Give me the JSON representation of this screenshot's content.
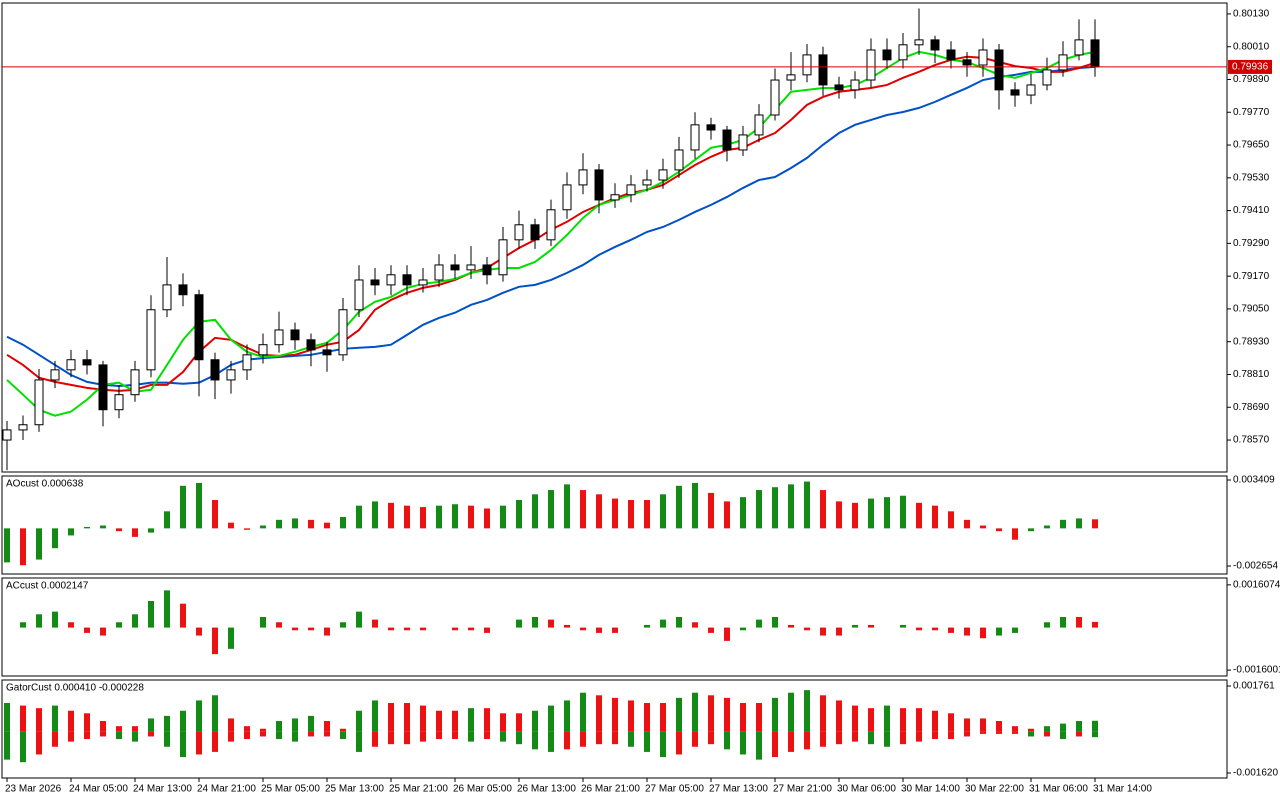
{
  "chart_data": [
    {
      "type": "candlestick",
      "categories": [
        "23 Mar 2026",
        null,
        null,
        null,
        "24 Mar 05:00",
        null,
        null,
        null,
        "24 Mar 13:00",
        null,
        null,
        null,
        "24 Mar 21:00",
        null,
        null,
        null,
        "25 Mar 05:00",
        null,
        null,
        null,
        "25 Mar 13:00",
        null,
        null,
        null,
        "25 Mar 21:00",
        null,
        null,
        null,
        "26 Mar 05:00",
        null,
        null,
        null,
        "26 Mar 13:00",
        null,
        null,
        null,
        "26 Mar 21:00",
        null,
        null,
        null,
        "27 Mar 05:00",
        null,
        null,
        null,
        "27 Mar 13:00",
        null,
        null,
        null,
        "27 Mar 21:00",
        null,
        null,
        null,
        "30 Mar 06:00",
        null,
        null,
        null,
        "30 Mar 14:00",
        null,
        null,
        null,
        "30 Mar 22:00",
        null,
        null,
        null,
        "31 Mar 06:00",
        null,
        null,
        null,
        "31 Mar 14:00"
      ],
      "open": [
        0.7857,
        0.78607,
        0.78626,
        0.7879,
        0.78827,
        0.78864,
        0.78845,
        0.78681,
        0.78736,
        0.78827,
        0.79047,
        0.79138,
        0.79102,
        0.78864,
        0.7879,
        0.78827,
        0.78882,
        0.78919,
        0.78973,
        0.78937,
        0.789,
        0.78882,
        0.79047,
        0.79156,
        0.79138,
        0.79175,
        0.79138,
        0.79156,
        0.79211,
        0.79193,
        0.79211,
        0.79175,
        0.79303,
        0.79358,
        0.79303,
        0.79413,
        0.79504,
        0.79559,
        0.79449,
        0.79468,
        0.79504,
        0.79522,
        0.79559,
        0.79632,
        0.79724,
        0.79705,
        0.79632,
        0.79687,
        0.7976,
        0.79888,
        0.79907,
        0.7998,
        0.7987,
        0.79852,
        0.79888,
        0.79998,
        0.79962,
        0.80017,
        0.80035,
        0.79998,
        0.79962,
        0.79943,
        0.79998,
        0.79852,
        0.79833,
        0.7987,
        0.79925,
        0.7998,
        0.80035
      ],
      "high": [
        0.7864,
        0.7866,
        0.7883,
        0.7886,
        0.789,
        0.789,
        0.7886,
        0.7877,
        0.7886,
        0.791,
        0.7924,
        0.7918,
        0.7912,
        0.7889,
        0.7886,
        0.7892,
        0.7896,
        0.7904,
        0.79,
        0.7896,
        0.7893,
        0.7909,
        0.7921,
        0.792,
        0.7921,
        0.7921,
        0.792,
        0.7925,
        0.7925,
        0.7928,
        0.7924,
        0.7935,
        0.7941,
        0.7938,
        0.7945,
        0.7955,
        0.7962,
        0.7958,
        0.7951,
        0.7954,
        0.7956,
        0.796,
        0.7968,
        0.7977,
        0.7975,
        0.7972,
        0.7972,
        0.798,
        0.7993,
        0.7999,
        0.8002,
        0.8001,
        0.799,
        0.7992,
        0.8004,
        0.8004,
        0.8006,
        0.8015,
        0.8005,
        0.8003,
        0.7999,
        0.8004,
        0.8002,
        0.7988,
        0.7991,
        0.7997,
        0.8003,
        0.8011,
        0.8011
      ],
      "low": [
        0.7846,
        0.7857,
        0.786,
        0.7876,
        0.788,
        0.7881,
        0.7862,
        0.7865,
        0.7871,
        0.788,
        0.7902,
        0.7906,
        0.7873,
        0.7872,
        0.7874,
        0.7879,
        0.7885,
        0.7889,
        0.789,
        0.7884,
        0.7882,
        0.7886,
        0.7902,
        0.791,
        0.791,
        0.791,
        0.7911,
        0.7913,
        0.7916,
        0.7916,
        0.7914,
        0.7915,
        0.7927,
        0.7927,
        0.7928,
        0.7938,
        0.7947,
        0.794,
        0.7942,
        0.7944,
        0.7948,
        0.7949,
        0.7953,
        0.796,
        0.7967,
        0.7959,
        0.7961,
        0.7966,
        0.7974,
        0.7985,
        0.7988,
        0.7983,
        0.7982,
        0.7982,
        0.7986,
        0.7993,
        0.7993,
        0.7998,
        0.7995,
        0.7993,
        0.799,
        0.799,
        0.7978,
        0.7979,
        0.798,
        0.7985,
        0.799,
        0.7996,
        0.799
      ],
      "close": [
        0.78607,
        0.78626,
        0.7879,
        0.78827,
        0.78864,
        0.78845,
        0.78681,
        0.78736,
        0.78827,
        0.79047,
        0.79138,
        0.79102,
        0.78864,
        0.7879,
        0.78827,
        0.78882,
        0.78919,
        0.78973,
        0.78937,
        0.789,
        0.78882,
        0.79047,
        0.79156,
        0.79138,
        0.79175,
        0.79138,
        0.79156,
        0.79211,
        0.79193,
        0.79211,
        0.79175,
        0.79303,
        0.79358,
        0.79303,
        0.79413,
        0.79504,
        0.79559,
        0.79449,
        0.79468,
        0.79504,
        0.79522,
        0.79559,
        0.79632,
        0.79724,
        0.79705,
        0.79632,
        0.79687,
        0.7976,
        0.79888,
        0.79907,
        0.7998,
        0.7987,
        0.79852,
        0.79888,
        0.79998,
        0.79962,
        0.80017,
        0.80035,
        0.79998,
        0.79962,
        0.79943,
        0.79998,
        0.79852,
        0.79833,
        0.7987,
        0.79925,
        0.7998,
        0.80035,
        0.79936
      ],
      "up_color": "#ffffff",
      "down_color": "#000000",
      "wick_color": "#000000",
      "lines": [
        {
          "color": "#0050c8",
          "values": [
            0.78948,
            0.78919,
            0.78882,
            0.78845,
            0.78808,
            0.78783,
            0.78772,
            0.78768,
            0.78772,
            0.7878,
            0.7878,
            0.78776,
            0.7878,
            0.78808,
            0.78845,
            0.78864,
            0.7887,
            0.78874,
            0.78878,
            0.78882,
            0.78893,
            0.78904,
            0.78908,
            0.78911,
            0.78919,
            0.78955,
            0.78992,
            0.79017,
            0.79036,
            0.79065,
            0.79083,
            0.79109,
            0.79131,
            0.79138,
            0.79156,
            0.79182,
            0.79211,
            0.79248,
            0.79277,
            0.79303,
            0.79332,
            0.7935,
            0.79376,
            0.79405,
            0.79431,
            0.7946,
            0.79493,
            0.79522,
            0.79533,
            0.79566,
            0.79603,
            0.79651,
            0.79694,
            0.79724,
            0.79742,
            0.7976,
            0.79771,
            0.79786,
            0.79808,
            0.79834,
            0.79859,
            0.79888,
            0.79899,
            0.79907,
            0.79918,
            0.79918,
            0.79925,
            0.79932,
            0.79936
          ]
        },
        {
          "color": "#e00000",
          "values": [
            0.78882,
            0.78845,
            0.78798,
            0.78783,
            0.78772,
            0.78761,
            0.78754,
            0.7875,
            0.78754,
            0.78772,
            0.78772,
            0.78819,
            0.78893,
            0.78944,
            0.78937,
            0.78908,
            0.78882,
            0.78878,
            0.78882,
            0.789,
            0.78919,
            0.7893,
            0.78973,
            0.79047,
            0.79083,
            0.79109,
            0.79127,
            0.79138,
            0.79156,
            0.79182,
            0.792,
            0.79237,
            0.79273,
            0.79303,
            0.7934,
            0.79369,
            0.79405,
            0.79431,
            0.79456,
            0.79475,
            0.79486,
            0.79504,
            0.7954,
            0.79577,
            0.79607,
            0.79632,
            0.7964,
            0.79669,
            0.79694,
            0.79742,
            0.79797,
            0.79826,
            0.79845,
            0.79852,
            0.79859,
            0.7987,
            0.79896,
            0.79918,
            0.79943,
            0.79962,
            0.79973,
            0.79969,
            0.79954,
            0.79939,
            0.79932,
            0.79918,
            0.79918,
            0.79932,
            0.79951
          ]
        },
        {
          "color": "#00e000",
          "values": [
            0.7879,
            0.78736,
            0.78681,
            0.78659,
            0.78674,
            0.78718,
            0.78772,
            0.7878,
            0.78747,
            0.78754,
            0.78845,
            0.78937,
            0.79003,
            0.7901,
            0.78937,
            0.78893,
            0.78874,
            0.78878,
            0.78893,
            0.78911,
            0.78926,
            0.78973,
            0.79039,
            0.79076,
            0.79094,
            0.79127,
            0.79142,
            0.79149,
            0.7916,
            0.79182,
            0.79193,
            0.792,
            0.792,
            0.79222,
            0.79266,
            0.79321,
            0.79383,
            0.79431,
            0.79449,
            0.79468,
            0.79486,
            0.79515,
            0.79552,
            0.79596,
            0.7964,
            0.79651,
            0.79669,
            0.79713,
            0.79779,
            0.79845,
            0.79852,
            0.79859,
            0.79859,
            0.7987,
            0.79896,
            0.79932,
            0.79969,
            0.79991,
            0.7998,
            0.79962,
            0.79954,
            0.79932,
            0.79907,
            0.79896,
            0.79914,
            0.79932,
            0.79962,
            0.7998,
            0.79991
          ]
        }
      ],
      "price_line": 0.79936,
      "price_line_color": "#d00000",
      "ylim": [
        0.78453,
        0.8017
      ],
      "yticks": [
        {
          "value": 0.8013,
          "label": "0.80130"
        },
        {
          "value": 0.8001,
          "label": "0.80010"
        },
        {
          "value": 0.7989,
          "label": "0.79890"
        },
        {
          "value": 0.7977,
          "label": "0.79770"
        },
        {
          "value": 0.7965,
          "label": "0.79650"
        },
        {
          "value": 0.7953,
          "label": "0.79530"
        },
        {
          "value": 0.7941,
          "label": "0.79410"
        },
        {
          "value": 0.7929,
          "label": "0.79290"
        },
        {
          "value": 0.7917,
          "label": "0.79170"
        },
        {
          "value": 0.7905,
          "label": "0.79050"
        },
        {
          "value": 0.7893,
          "label": "0.78930"
        },
        {
          "value": 0.7881,
          "label": "0.78810"
        },
        {
          "value": 0.7869,
          "label": "0.78690"
        },
        {
          "value": 0.7857,
          "label": "0.78570"
        }
      ]
    },
    {
      "type": "histogram",
      "title": "AOcust 0.000638",
      "values": [
        -0.0024,
        -0.0026,
        -0.0022,
        -0.0014,
        -0.0005,
        0.0001,
        0.0002,
        -0.0002,
        -0.0006,
        -0.0003,
        0.0012,
        0.003,
        0.0032,
        0.002,
        0.0004,
        -0.0001,
        0.0002,
        0.0006,
        0.0007,
        0.0006,
        0.0004,
        0.0008,
        0.0016,
        0.0019,
        0.0018,
        0.0016,
        0.0015,
        0.0016,
        0.0017,
        0.0016,
        0.0014,
        0.0016,
        0.002,
        0.0024,
        0.0027,
        0.0031,
        0.0027,
        0.0024,
        0.0021,
        0.002,
        0.002,
        0.0024,
        0.003,
        0.0032,
        0.0025,
        0.0019,
        0.0022,
        0.0027,
        0.0029,
        0.0031,
        0.0033,
        0.0027,
        0.0019,
        0.0018,
        0.0021,
        0.0022,
        0.0023,
        0.0018,
        0.0016,
        0.0012,
        0.0006,
        0.0002,
        -0.0002,
        -0.0008,
        -0.0002,
        0.0002,
        0.0006,
        0.0007,
        0.000638
      ],
      "up_color": "#138a13",
      "down_color": "#ee1111",
      "ylim": [
        -0.003218,
        0.003691
      ],
      "yticks": [
        0.003409,
        -0.002654
      ]
    },
    {
      "type": "histogram",
      "title": "ACcust 0.0002147",
      "values": [
        0,
        0.0002,
        0.0005,
        0.0006,
        0.0002,
        -0.0002,
        -0.0003,
        0.0002,
        0.0005,
        0.001,
        0.0014,
        0.0009,
        -0.0003,
        -0.001,
        -0.0008,
        0,
        0.0004,
        0.0002,
        -0.0001,
        -0.0001,
        -0.0003,
        0.0002,
        0.0006,
        0.0003,
        -0.0001,
        -0.0001,
        -0.0001,
        0,
        -0.0001,
        -0.0001,
        -0.0002,
        0,
        0.0003,
        0.0004,
        0.0003,
        0.0001,
        -0.0001,
        -0.0002,
        -0.0002,
        0,
        0.0001,
        0.0003,
        0.0004,
        0.0002,
        -0.0002,
        -0.0005,
        -0.0001,
        0.0003,
        0.0004,
        0.0001,
        -0.0001,
        -0.0003,
        -0.0003,
        0.0001,
        0.0001,
        0,
        0.0001,
        -0.0001,
        -0.0001,
        -0.0002,
        -0.0003,
        -0.0004,
        -0.0003,
        -0.0002,
        0,
        0.0002,
        0.0004,
        0.0004,
        0.0002147
      ],
      "up_color": "#138a13",
      "down_color": "#ee1111",
      "ylim": [
        -0.001822,
        0.001866
      ],
      "yticks": [
        0.0016074,
        -0.0016001
      ]
    },
    {
      "type": "gator",
      "title": "GatorCust 0.000410 -0.000228",
      "upper": [
        0.0011,
        0.001,
        0.0009,
        0.001,
        0.0008,
        0.0007,
        0.0004,
        0.0002,
        0.0002,
        0.0005,
        0.0006,
        0.0008,
        0.0012,
        0.0014,
        0.0005,
        0.0002,
        0.0001,
        0.0004,
        0.0005,
        0.0006,
        0.0004,
        0.0001,
        0.0008,
        0.0012,
        0.0011,
        0.0011,
        0.001,
        0.0008,
        0.0008,
        0.0009,
        0.0009,
        0.0007,
        0.0007,
        0.0008,
        0.001,
        0.0012,
        0.0015,
        0.0014,
        0.0013,
        0.0012,
        0.0011,
        0.0011,
        0.0013,
        0.0015,
        0.0014,
        0.0013,
        0.0011,
        0.0011,
        0.0013,
        0.0015,
        0.0016,
        0.0014,
        0.0012,
        0.001,
        0.0009,
        0.001,
        0.0009,
        0.0009,
        0.0008,
        0.0007,
        0.0005,
        0.0005,
        0.0004,
        0.0002,
        0.0001,
        0.0002,
        0.0003,
        0.0004,
        0.00041
      ],
      "lower": [
        -0.0011,
        -0.0012,
        -0.0009,
        -0.0006,
        -0.0004,
        -0.0003,
        -0.0002,
        -0.0003,
        -0.0004,
        -0.0002,
        -0.0006,
        -0.001,
        -0.0009,
        -0.0008,
        -0.0004,
        -0.0003,
        -0.0002,
        -0.0003,
        -0.0004,
        -0.0002,
        -0.0002,
        -0.0003,
        -0.0008,
        -0.0006,
        -0.0005,
        -0.0005,
        -0.0004,
        -0.0003,
        -0.0003,
        -0.0004,
        -0.0003,
        -0.0004,
        -0.0005,
        -0.0007,
        -0.0008,
        -0.0007,
        -0.0006,
        -0.0005,
        -0.0005,
        -0.0006,
        -0.0008,
        -0.001,
        -0.0009,
        -0.0006,
        -0.0005,
        -0.0007,
        -0.0009,
        -0.0011,
        -0.001,
        -0.0008,
        -0.0007,
        -0.0006,
        -0.0005,
        -0.0004,
        -0.0005,
        -0.0006,
        -0.0005,
        -0.0004,
        -0.0003,
        -0.0003,
        -0.0002,
        -0.0001,
        -0.0001,
        -0.0001,
        -0.0002,
        -0.0002,
        -0.0003,
        -0.0002,
        -0.000228
      ],
      "up_color": "#138a13",
      "down_color": "#ee1111",
      "ylim": [
        -0.001814,
        0.001994
      ],
      "yticks": [
        0.001761,
        {
          "value": -0.00162,
          "label": "-0.001620"
        }
      ]
    }
  ]
}
